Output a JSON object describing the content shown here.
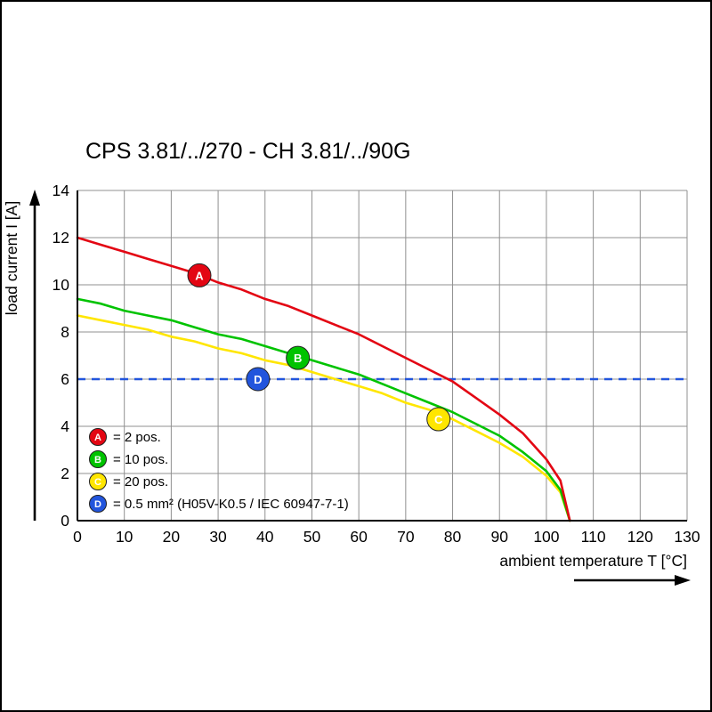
{
  "chart_data": {
    "type": "line",
    "title": "CPS 3.81/../270 - CH 3.81/../90G",
    "xlabel": "ambient temperature T [°C]",
    "ylabel": "load current I [A]",
    "xlim": [
      0,
      130
    ],
    "ylim": [
      0,
      14
    ],
    "xticks": [
      0,
      10,
      20,
      30,
      40,
      50,
      60,
      70,
      80,
      90,
      100,
      110,
      120,
      130
    ],
    "yticks": [
      0,
      2,
      4,
      6,
      8,
      10,
      12,
      14
    ],
    "grid": true,
    "legend_position": "lower-left-inside",
    "x": [
      0,
      5,
      10,
      15,
      20,
      25,
      30,
      35,
      40,
      45,
      50,
      55,
      60,
      65,
      70,
      75,
      80,
      85,
      90,
      95,
      100,
      103,
      105
    ],
    "series": [
      {
        "name": "A",
        "label": "= 2 pos.",
        "color": "#e30613",
        "values": [
          12,
          11.7,
          11.4,
          11.1,
          10.8,
          10.5,
          10.1,
          9.8,
          9.4,
          9.1,
          8.7,
          8.3,
          7.9,
          7.4,
          6.9,
          6.4,
          5.9,
          5.2,
          4.5,
          3.7,
          2.6,
          1.7,
          0
        ],
        "marker": {
          "x": 26,
          "y": 10.4
        }
      },
      {
        "name": "B",
        "label": "= 10 pos.",
        "color": "#00c300",
        "values": [
          9.4,
          9.2,
          8.9,
          8.7,
          8.5,
          8.2,
          7.9,
          7.7,
          7.4,
          7.1,
          6.8,
          6.5,
          6.2,
          5.8,
          5.4,
          5,
          4.6,
          4.1,
          3.6,
          2.9,
          2.1,
          1.3,
          0
        ],
        "marker": {
          "x": 47,
          "y": 6.9
        }
      },
      {
        "name": "C",
        "label": "= 20 pos.",
        "color": "#ffe600",
        "values": [
          8.7,
          8.5,
          8.3,
          8.1,
          7.8,
          7.6,
          7.3,
          7.1,
          6.8,
          6.6,
          6.3,
          6,
          5.7,
          5.4,
          5,
          4.7,
          4.3,
          3.8,
          3.3,
          2.7,
          1.9,
          1.2,
          0
        ],
        "marker": {
          "x": 77,
          "y": 4.3
        }
      },
      {
        "name": "D",
        "label": "= 0.5 mm² (H05V-K0.5 / IEC 60947-7-1)",
        "color": "#2255dd",
        "type": "hline",
        "y": 6,
        "dashed": true,
        "marker": {
          "x": 38.5,
          "y": 6
        }
      }
    ],
    "colors": {
      "grid": "#909090",
      "axis": "#000000",
      "marker_letter": "#ffffff"
    }
  }
}
